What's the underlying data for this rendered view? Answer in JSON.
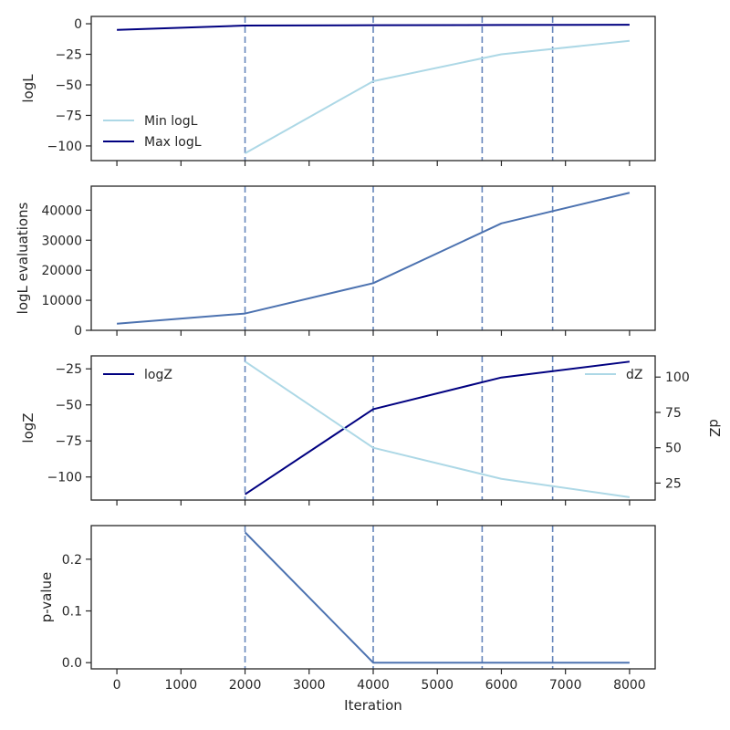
{
  "colors": {
    "min_logl": "#add8e6",
    "max_logl": "#000080",
    "evaluations": "#4c72b0",
    "logz": "#000080",
    "dz": "#add8e6",
    "pvalue": "#4c72b0",
    "vline": "#4c72b0"
  },
  "chart_data": [
    {
      "type": "line",
      "ylabel": "logL",
      "xlim": [
        -400,
        8400
      ],
      "ylim": [
        -112,
        6
      ],
      "yticks": [
        0,
        -25,
        -50,
        -75,
        -100
      ],
      "ytick_labels": [
        "0",
        "−25",
        "−50",
        "−75",
        "−100"
      ],
      "grid": false,
      "legend_position": "lower left",
      "vlines": [
        2000,
        4000,
        5700,
        6800
      ],
      "series": [
        {
          "name": "Min logL",
          "color_key": "min_logl",
          "x": [
            2000,
            4000,
            6000,
            8000
          ],
          "values": [
            -106,
            -47,
            -25,
            -14
          ]
        },
        {
          "name": "Max logL",
          "color_key": "max_logl",
          "x": [
            0,
            2000,
            4000,
            6000,
            8000
          ],
          "values": [
            -5,
            -1.5,
            -1.2,
            -1,
            -0.8
          ]
        }
      ]
    },
    {
      "type": "line",
      "ylabel": "logL evaluations",
      "xlim": [
        -400,
        8400
      ],
      "ylim": [
        0,
        48000
      ],
      "yticks": [
        0,
        10000,
        20000,
        30000,
        40000
      ],
      "ytick_labels": [
        "0",
        "10000",
        "20000",
        "30000",
        "40000"
      ],
      "grid": false,
      "vlines": [
        2000,
        4000,
        5700,
        6800
      ],
      "series": [
        {
          "color_key": "evaluations",
          "x": [
            0,
            2000,
            4000,
            6000,
            8000
          ],
          "values": [
            2200,
            5600,
            15700,
            35600,
            45800
          ]
        }
      ]
    },
    {
      "type": "line",
      "ylabel": "logZ",
      "y2label": "dZ",
      "xlim": [
        -400,
        8400
      ],
      "ylim": [
        -116,
        -16
      ],
      "yticks": [
        -25,
        -50,
        -75,
        -100
      ],
      "ytick_labels": [
        "−25",
        "−50",
        "−75",
        "−100"
      ],
      "y2lim": [
        13,
        115
      ],
      "y2ticks": [
        25,
        50,
        75,
        100
      ],
      "y2tick_labels": [
        "25",
        "50",
        "75",
        "100"
      ],
      "grid": false,
      "legend_position": "upper left / upper right",
      "vlines": [
        2000,
        4000,
        5700,
        6800
      ],
      "series": [
        {
          "name": "logZ",
          "axis": "left",
          "color_key": "logz",
          "x": [
            2000,
            4000,
            6000,
            8000
          ],
          "values": [
            -112,
            -53,
            -31,
            -20
          ]
        },
        {
          "name": "dZ",
          "axis": "right",
          "color_key": "dz",
          "x": [
            2000,
            4000,
            6000,
            8000
          ],
          "values": [
            111,
            50,
            28,
            15
          ]
        }
      ]
    },
    {
      "type": "line",
      "ylabel": "p-value",
      "xlabel": "Iteration",
      "xlim": [
        -400,
        8400
      ],
      "xticks": [
        0,
        1000,
        2000,
        3000,
        4000,
        5000,
        6000,
        7000,
        8000
      ],
      "xtick_labels": [
        "0",
        "1000",
        "2000",
        "3000",
        "4000",
        "5000",
        "6000",
        "7000",
        "8000"
      ],
      "ylim": [
        -0.012,
        0.265
      ],
      "yticks": [
        0.0,
        0.1,
        0.2
      ],
      "ytick_labels": [
        "0.0",
        "0.1",
        "0.2"
      ],
      "grid": false,
      "vlines": [
        2000,
        4000,
        5700,
        6800
      ],
      "series": [
        {
          "color_key": "pvalue",
          "x": [
            2000,
            4000,
            6000,
            8000
          ],
          "values": [
            0.252,
            0.0,
            0.0,
            0.0
          ]
        }
      ]
    }
  ]
}
